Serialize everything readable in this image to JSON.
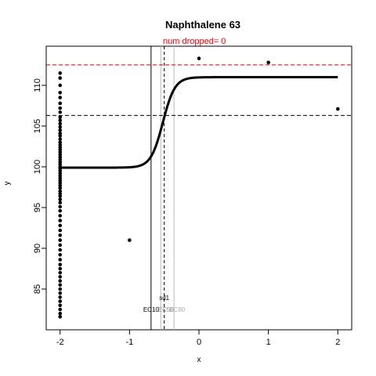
{
  "chart_data": {
    "type": "scatter",
    "title": "Naphthalene 63",
    "subtitle": "num dropped= 0",
    "xlabel": "x",
    "ylabel": "y",
    "xlim": [
      -2.2,
      2.2
    ],
    "ylim": [
      80,
      114.8
    ],
    "x_ticks": [
      -2,
      -1,
      0,
      1,
      2
    ],
    "y_ticks": [
      85,
      90,
      95,
      100,
      105,
      110
    ],
    "colors": {
      "points": "#000000",
      "curve": "#000000",
      "max_line": "#cc0000",
      "subtitle": "#ff0000",
      "ec_line": "#000000",
      "ec_shade": "#bbbbbb"
    },
    "points": {
      "x": [
        -2,
        -2,
        -2,
        -2,
        -2,
        -2,
        -2,
        -2,
        -2,
        -2,
        -2,
        -2,
        -2,
        -2,
        -2,
        -2,
        -2,
        -2,
        -2,
        -2,
        -2,
        -2,
        -2,
        -2,
        -2,
        -2,
        -2,
        -2,
        -2,
        -2,
        -2,
        -2,
        -2,
        -2,
        -2,
        -2,
        -2,
        -2,
        -2,
        -2,
        -2,
        -2,
        -2,
        -2,
        -2,
        -2,
        -2,
        -2,
        -2,
        -2,
        -2,
        -2,
        -2,
        -2,
        -2,
        -2,
        -2,
        -2,
        -2,
        -2,
        -2,
        -2,
        -2,
        -2,
        -2,
        -2,
        -2,
        -1,
        0,
        1,
        2
      ],
      "y": [
        111.5,
        110.9,
        110.0,
        109.1,
        108.5,
        107.8,
        107.2,
        106.7,
        106.1,
        105.7,
        105.3,
        104.9,
        104.5,
        104.1,
        103.8,
        103.4,
        103.0,
        102.7,
        102.4,
        102.1,
        101.8,
        101.5,
        101.2,
        100.9,
        100.6,
        100.3,
        100.0,
        99.8,
        99.5,
        99.2,
        98.9,
        98.6,
        98.3,
        98.0,
        97.7,
        97.4,
        97.0,
        96.7,
        96.4,
        96.0,
        95.6,
        95.1,
        94.6,
        94.0,
        93.4,
        92.8,
        92.2,
        91.6,
        91.0,
        90.4,
        89.8,
        89.2,
        88.6,
        88.0,
        87.5,
        87.0,
        86.5,
        86.0,
        85.5,
        85.0,
        84.5,
        84.0,
        83.5,
        83.0,
        82.5,
        82.0,
        81.6,
        91.0,
        113.3,
        112.8,
        107.1
      ]
    },
    "fit": {
      "bottom": 99.9,
      "top": 111.0,
      "ec50": -0.52,
      "hill": 5.0,
      "x_start": -2,
      "x_end": 2
    },
    "lines": {
      "max_y": 112.5,
      "half_y": 106.3,
      "ec10_x": -0.69,
      "ec50_x": -0.5,
      "ec90_x": -0.36,
      "sd_x_low": -0.55,
      "sd_x_high": -0.45
    },
    "ec_labels": [
      "EC10",
      "EC50",
      "EC90",
      "sd1"
    ]
  }
}
